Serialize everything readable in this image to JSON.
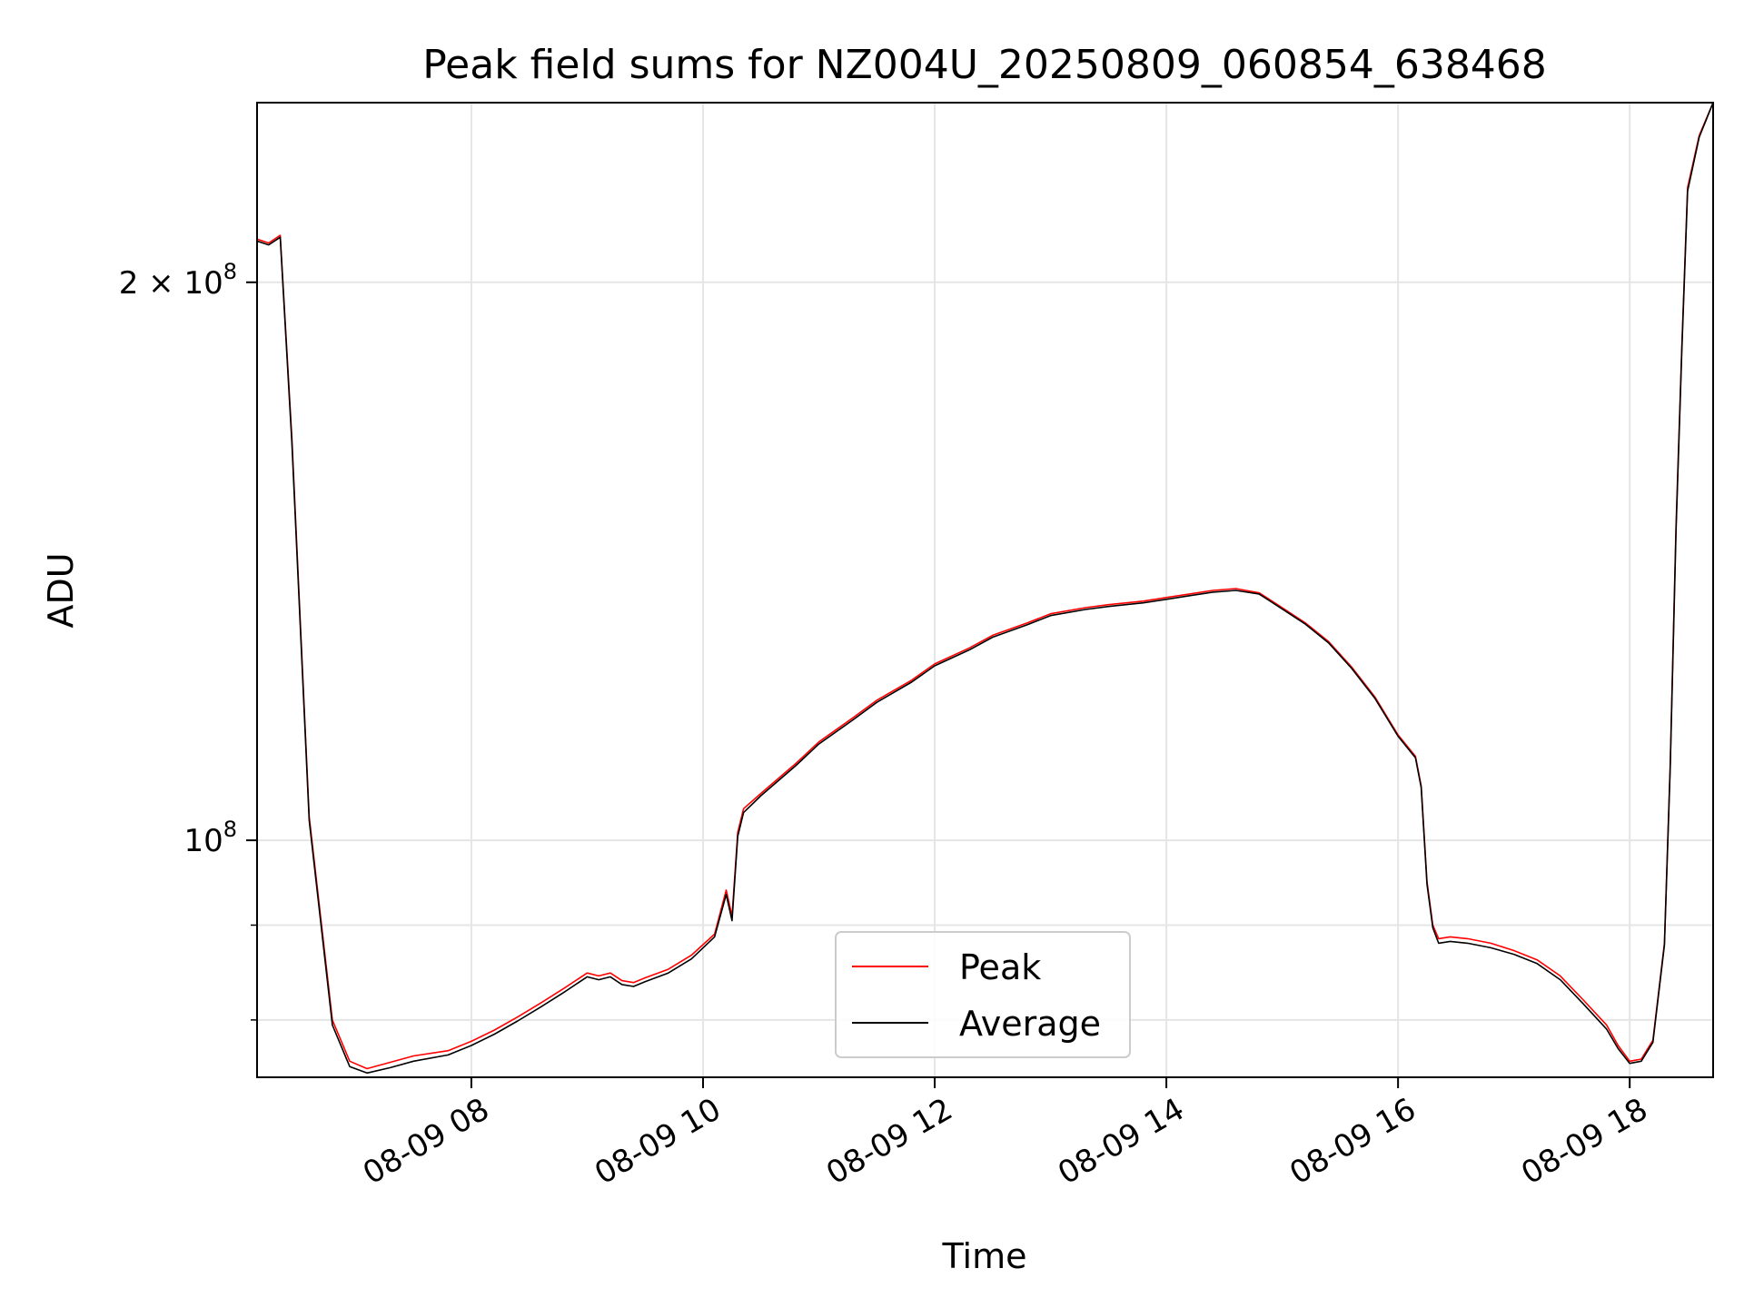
{
  "chart_data": {
    "type": "line",
    "title": "Peak field sums for NZ004U_20250809_060854_638468",
    "xlabel": "Time",
    "ylabel": "ADU",
    "yscale": "log",
    "ylim": [
      74500000,
      250000000
    ],
    "x_range_hours": [
      6.15,
      18.72
    ],
    "grid": true,
    "legend_position": "bottom-center",
    "x_ticks": [
      {
        "value": 8,
        "label": "08-09 08"
      },
      {
        "value": 10,
        "label": "08-09 10"
      },
      {
        "value": 12,
        "label": "08-09 12"
      },
      {
        "value": 14,
        "label": "08-09 14"
      },
      {
        "value": 16,
        "label": "08-09 16"
      },
      {
        "value": 18,
        "label": "08-09 18"
      }
    ],
    "y_major_ticks": [
      {
        "value": 100000000,
        "base": "10",
        "exp": "8",
        "mult": ""
      },
      {
        "value": 200000000,
        "base": "10",
        "exp": "8",
        "mult": "2 × "
      }
    ],
    "y_minor_ticks": [
      80000000,
      90000000
    ],
    "x_unit": "hour of 2025-08-09",
    "series": [
      {
        "name": "Peak",
        "color": "#ff0000",
        "x": [
          6.15,
          6.25,
          6.35,
          6.45,
          6.6,
          6.8,
          6.95,
          7.1,
          7.3,
          7.5,
          7.8,
          8.0,
          8.2,
          8.4,
          8.6,
          8.8,
          9.0,
          9.1,
          9.2,
          9.3,
          9.4,
          9.5,
          9.7,
          9.9,
          10.1,
          10.2,
          10.25,
          10.3,
          10.35,
          10.5,
          10.8,
          11.0,
          11.3,
          11.5,
          11.8,
          12.0,
          12.3,
          12.5,
          12.8,
          13.0,
          13.3,
          13.5,
          13.8,
          14.0,
          14.2,
          14.4,
          14.6,
          14.8,
          15.0,
          15.2,
          15.4,
          15.6,
          15.8,
          16.0,
          16.15,
          16.2,
          16.25,
          16.3,
          16.35,
          16.45,
          16.6,
          16.8,
          17.0,
          17.2,
          17.4,
          17.6,
          17.8,
          17.9,
          18.0,
          18.1,
          18.2,
          18.3,
          18.35,
          18.4,
          18.45,
          18.5,
          18.6,
          18.72
        ],
        "values": [
          211000000,
          210000000,
          212000000,
          165000000,
          103000000,
          80000000,
          76000000,
          75300000,
          75900000,
          76500000,
          77000000,
          77900000,
          79000000,
          80300000,
          81700000,
          83200000,
          84800000,
          84500000,
          84800000,
          84000000,
          83800000,
          84300000,
          85200000,
          86700000,
          89000000,
          94000000,
          91000000,
          101000000,
          104000000,
          106000000,
          110000000,
          113000000,
          116500000,
          119000000,
          122000000,
          124500000,
          127000000,
          129000000,
          131000000,
          132500000,
          133500000,
          134000000,
          134600000,
          135200000,
          135800000,
          136400000,
          136700000,
          136000000,
          133500000,
          131000000,
          128000000,
          124000000,
          119500000,
          114000000,
          111000000,
          107000000,
          95000000,
          90000000,
          88500000,
          88700000,
          88500000,
          88000000,
          87200000,
          86200000,
          84500000,
          82000000,
          79500000,
          77500000,
          76000000,
          76200000,
          78000000,
          88000000,
          110000000,
          148000000,
          185000000,
          225000000,
          240000000,
          250000000
        ]
      },
      {
        "name": "Average",
        "color": "#000000",
        "x": [
          6.15,
          6.25,
          6.35,
          6.45,
          6.6,
          6.8,
          6.95,
          7.1,
          7.3,
          7.5,
          7.8,
          8.0,
          8.2,
          8.4,
          8.6,
          8.8,
          9.0,
          9.1,
          9.2,
          9.3,
          9.4,
          9.5,
          9.7,
          9.9,
          10.1,
          10.2,
          10.25,
          10.3,
          10.35,
          10.5,
          10.8,
          11.0,
          11.3,
          11.5,
          11.8,
          12.0,
          12.3,
          12.5,
          12.8,
          13.0,
          13.3,
          13.5,
          13.8,
          14.0,
          14.2,
          14.4,
          14.6,
          14.8,
          15.0,
          15.2,
          15.4,
          15.6,
          15.8,
          16.0,
          16.15,
          16.2,
          16.25,
          16.3,
          16.35,
          16.45,
          16.6,
          16.8,
          17.0,
          17.2,
          17.4,
          17.6,
          17.8,
          17.9,
          18.0,
          18.1,
          18.2,
          18.3,
          18.35,
          18.4,
          18.45,
          18.5,
          18.6,
          18.72
        ],
        "values": [
          210500000,
          209500000,
          211500000,
          164000000,
          102500000,
          79500000,
          75500000,
          74900000,
          75400000,
          76000000,
          76600000,
          77500000,
          78600000,
          79900000,
          81300000,
          82800000,
          84400000,
          84100000,
          84400000,
          83600000,
          83400000,
          83900000,
          84800000,
          86300000,
          88700000,
          93500000,
          90500000,
          100500000,
          103500000,
          105700000,
          109700000,
          112700000,
          116200000,
          118700000,
          121700000,
          124200000,
          126700000,
          128700000,
          130700000,
          132200000,
          133200000,
          133700000,
          134300000,
          134900000,
          135500000,
          136100000,
          136400000,
          135800000,
          133300000,
          130800000,
          127800000,
          123800000,
          119300000,
          113800000,
          110800000,
          106800000,
          94700000,
          89700000,
          88000000,
          88200000,
          88000000,
          87500000,
          86800000,
          85800000,
          84100000,
          81600000,
          79100000,
          77200000,
          75800000,
          76000000,
          77800000,
          87800000,
          109500000,
          147000000,
          184000000,
          224000000,
          239500000,
          250000000
        ]
      }
    ]
  }
}
